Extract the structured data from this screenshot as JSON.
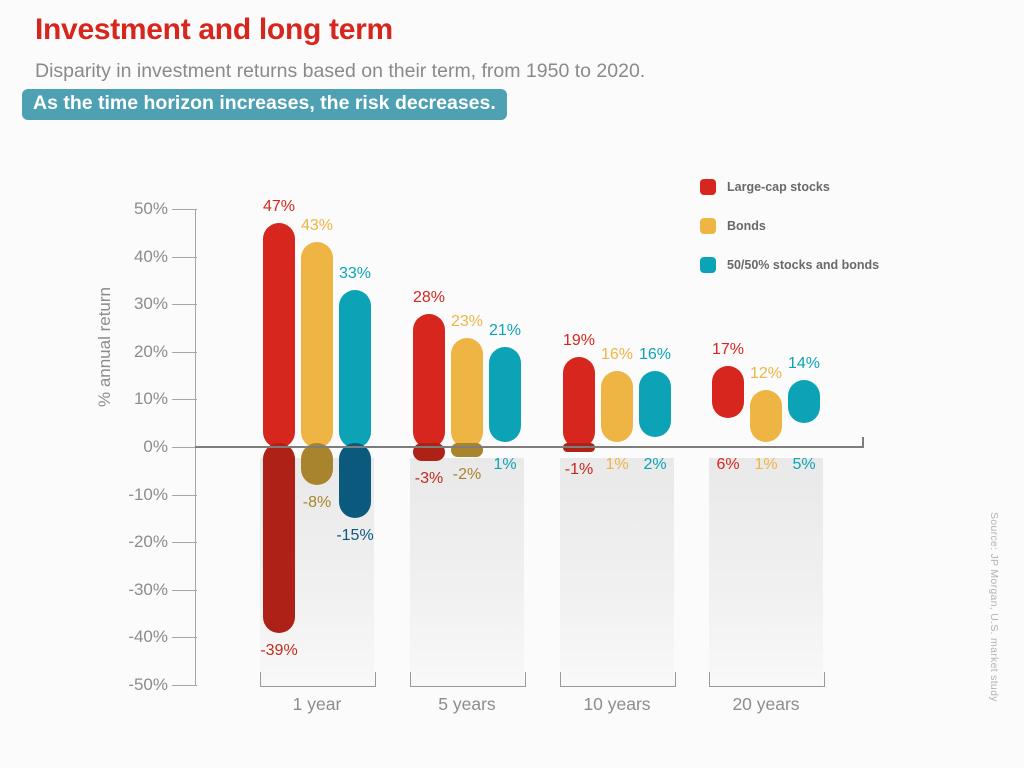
{
  "header": {
    "title": "Investment and long term",
    "subtitle": "Disparity in investment returns based on their term, from 1950 to 2020.",
    "highlight": "As the time horizon increases, the risk decreases."
  },
  "source_note": "Source: JP Morgan, U.S. market study",
  "colors": {
    "title": "#d7261d",
    "highlight_bg": "#4ea1b2",
    "background": "#fbfbfb",
    "axis": "#a6a6a6",
    "zero_line": "#7d7d7d",
    "tick_label": "#8c8c8c",
    "group_label": "#8c8c8c",
    "panel_top": "#e9e9e9",
    "panel_bottom": "#f8f8f8"
  },
  "chart_data": {
    "type": "bar",
    "subtype": "floating-range-columns",
    "title": "Investment and long term",
    "ylabel": "% annual return",
    "xlabel": "",
    "ylim": [
      -50,
      50
    ],
    "ytick_step": 10,
    "ytick_suffix": "%",
    "grid": false,
    "legend_position": "top-right",
    "categories": [
      "1 year",
      "5 years",
      "10 years",
      "20 years"
    ],
    "series": [
      {
        "name": "Large-cap stocks",
        "color": "#d7261d",
        "negative_color": "#ad2116",
        "negative_label_color": "#c42a1e",
        "max": [
          47,
          28,
          19,
          17
        ],
        "min": [
          -39,
          -3,
          -1,
          6
        ]
      },
      {
        "name": "Bonds",
        "color": "#efb544",
        "negative_color": "#a8842d",
        "negative_label_color": "#a8842d",
        "max": [
          43,
          23,
          16,
          12
        ],
        "min": [
          -8,
          -2,
          1,
          1
        ]
      },
      {
        "name": "50/50% stocks and bonds",
        "color": "#0ca3b7",
        "negative_color": "#0b5a7e",
        "negative_label_color": "#0b5a7e",
        "max": [
          33,
          21,
          16,
          14
        ],
        "min": [
          -15,
          1,
          2,
          5
        ]
      }
    ]
  }
}
